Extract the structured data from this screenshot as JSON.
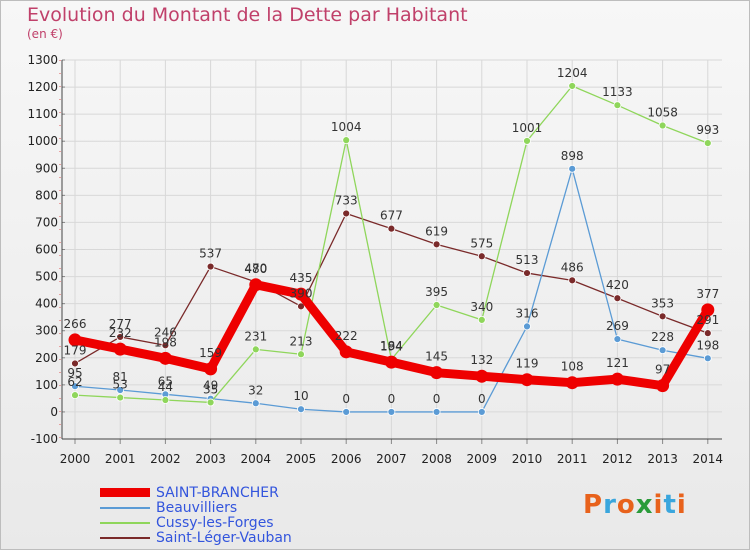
{
  "title": "Evolution du Montant de la Dette par Habitant",
  "unit": "(en €)",
  "logo": {
    "text": "Proxiti",
    "colors": [
      "#e8621c",
      "#3aa6dd",
      "#e8621c",
      "#2a9b3a",
      "#e8621c",
      "#3aa6dd",
      "#e8621c"
    ]
  },
  "chart_data": {
    "type": "line",
    "x": [
      "2000",
      "2001",
      "2002",
      "2003",
      "2004",
      "2005",
      "2006",
      "2007",
      "2008",
      "2009",
      "2010",
      "2011",
      "2012",
      "2013",
      "2014"
    ],
    "ylim": [
      -100,
      1300
    ],
    "yticks": [
      -100,
      0,
      100,
      200,
      300,
      400,
      500,
      600,
      700,
      800,
      900,
      1000,
      1100,
      1200,
      1300
    ],
    "grid": true,
    "legend_position": "bottom-left",
    "series": [
      {
        "name": "SAINT-BRANCHER",
        "color": "#ee0000",
        "width": 9,
        "values": [
          266,
          232,
          198,
          159,
          470,
          435,
          222,
          184,
          145,
          132,
          119,
          108,
          121,
          97,
          377
        ]
      },
      {
        "name": "Beauvilliers",
        "color": "#5b9bd5",
        "width": 1,
        "values": [
          95,
          81,
          65,
          49,
          32,
          10,
          0,
          0,
          0,
          0,
          316,
          898,
          269,
          228,
          198
        ]
      },
      {
        "name": "Cussy-les-Forges",
        "color": "#8fd65b",
        "width": 1,
        "values": [
          62,
          53,
          44,
          35,
          231,
          213,
          1004,
          194,
          395,
          340,
          1001,
          1204,
          1133,
          1058,
          993
        ]
      },
      {
        "name": "Saint-Léger-Vauban",
        "color": "#7a2a2a",
        "width": 1,
        "values": [
          179,
          277,
          246,
          537,
          480,
          390,
          733,
          677,
          619,
          575,
          513,
          486,
          420,
          353,
          291
        ]
      }
    ]
  }
}
